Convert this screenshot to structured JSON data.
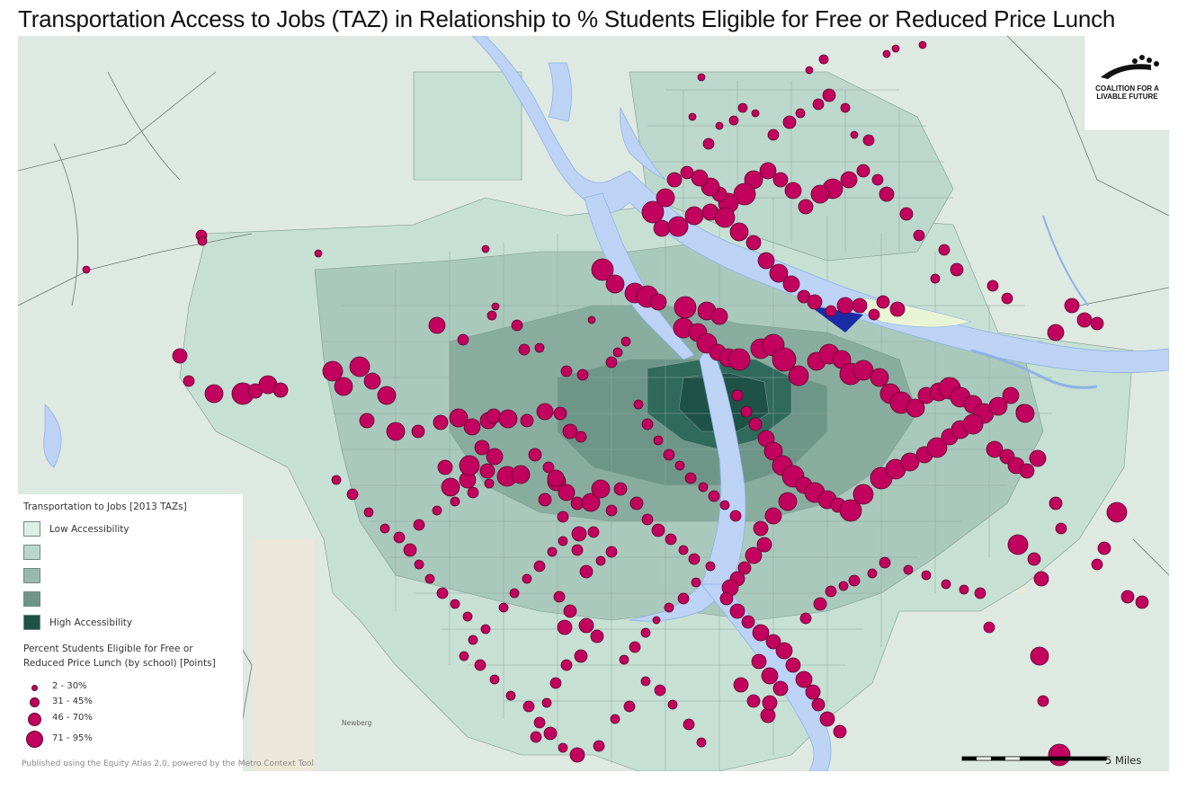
{
  "title": "Transportation Access to Jobs (TAZ) in Relationship to % Students Eligible for Free or Reduced Price Lunch",
  "logo": {
    "line1": "COALITION FOR A",
    "line2": "LIVABLE FUTURE",
    "icon": "logo-arc-dots"
  },
  "legend": {
    "taz_title": "Transportation to Jobs [2013 TAZs]",
    "classes": [
      {
        "label": "Low Accessibility",
        "color": "#dcefe5"
      },
      {
        "label": "",
        "color": "#b9d6cb"
      },
      {
        "label": "",
        "color": "#97b9ac"
      },
      {
        "label": "",
        "color": "#6e9688"
      },
      {
        "label": "High Accessibility",
        "color": "#1e5246"
      }
    ],
    "points_title_1": "Percent Students Eligible for Free or",
    "points_title_2": "Reduced Price Lunch (by school) [Points]",
    "points": [
      {
        "label": "2 - 30%"
      },
      {
        "label": "31 - 45%"
      },
      {
        "label": "46 - 70%"
      },
      {
        "label": "71 - 95%"
      }
    ],
    "point_color": "#c2005d"
  },
  "credit": "Published using the Equity Atlas 2.0, powered by the Metro Context Tool",
  "scale": {
    "label": "5 Miles"
  },
  "place_labels": {
    "newberg": "Newberg"
  },
  "colors": {
    "water": "#bcd3f5",
    "base": "#dce9e0",
    "outer": "#eef3ef",
    "boundary": "#6b7a74"
  }
}
